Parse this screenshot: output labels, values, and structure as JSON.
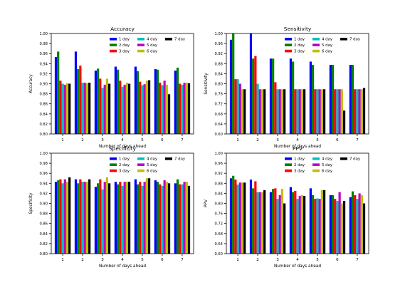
{
  "chart_data": [
    {
      "type": "bar",
      "title": "Accuracy",
      "xlabel": "Number of days ahead",
      "ylabel": "Accuracy",
      "ylim": [
        0.8,
        1.0
      ],
      "yticks": [
        0.8,
        0.82,
        0.84,
        0.86,
        0.88,
        0.9,
        0.92,
        0.94,
        0.96,
        0.98,
        1.0
      ],
      "categories": [
        "1",
        "2",
        "3",
        "4",
        "5",
        "6",
        "7"
      ],
      "legend_position": "top-right",
      "series": [
        {
          "name": "1 day",
          "color": "#0000ff",
          "values": [
            0.953,
            0.964,
            0.926,
            0.934,
            0.934,
            0.929,
            0.926
          ]
        },
        {
          "name": "2 day",
          "color": "#008000",
          "values": [
            0.964,
            0.929,
            0.93,
            0.928,
            0.925,
            0.928,
            0.932
          ]
        },
        {
          "name": "3 day",
          "color": "#ff0000",
          "values": [
            0.906,
            0.936,
            0.91,
            0.906,
            0.904,
            0.902,
            0.9
          ]
        },
        {
          "name": "4 day",
          "color": "#00bfbf",
          "values": [
            0.9,
            0.902,
            0.892,
            0.894,
            0.897,
            0.897,
            0.898
          ]
        },
        {
          "name": "5 day",
          "color": "#bf00bf",
          "values": [
            0.898,
            0.902,
            0.898,
            0.898,
            0.899,
            0.906,
            0.902
          ]
        },
        {
          "name": "6 day",
          "color": "#bfbf00",
          "values": [
            0.901,
            0.901,
            0.91,
            0.902,
            0.906,
            0.898,
            0.902
          ]
        },
        {
          "name": "7 day",
          "color": "#000000",
          "values": [
            0.9,
            0.902,
            0.9,
            0.9,
            0.907,
            0.879,
            0.901
          ]
        }
      ]
    },
    {
      "type": "bar",
      "title": "Sensitivity",
      "xlabel": "Number of days ahead",
      "ylabel": "Sensitivity",
      "ylim": [
        0.6,
        1.0
      ],
      "yticks": [
        0.6,
        0.64,
        0.68,
        0.72,
        0.76,
        0.8,
        0.84,
        0.88,
        0.92,
        0.96,
        1.0
      ],
      "categories": [
        "1",
        "2",
        "3",
        "4",
        "5",
        "6",
        "7"
      ],
      "legend_position": "top-right",
      "series": [
        {
          "name": "1 day",
          "color": "#0000ff",
          "values": [
            0.975,
            1.0,
            0.9,
            0.9,
            0.888,
            0.875,
            0.875
          ]
        },
        {
          "name": "2 day",
          "color": "#008000",
          "values": [
            1.0,
            0.9,
            0.9,
            0.888,
            0.875,
            0.875,
            0.875
          ]
        },
        {
          "name": "3 day",
          "color": "#ff0000",
          "values": [
            0.818,
            0.91,
            0.806,
            0.778,
            0.778,
            0.778,
            0.778
          ]
        },
        {
          "name": "4 day",
          "color": "#00bfbf",
          "values": [
            0.818,
            0.8,
            0.778,
            0.778,
            0.778,
            0.778,
            0.778
          ]
        },
        {
          "name": "5 day",
          "color": "#bf00bf",
          "values": [
            0.8,
            0.778,
            0.778,
            0.778,
            0.778,
            0.778,
            0.778
          ]
        },
        {
          "name": "6 day",
          "color": "#bfbf00",
          "values": [
            0.778,
            0.778,
            0.778,
            0.778,
            0.778,
            0.778,
            0.778
          ]
        },
        {
          "name": "7 day",
          "color": "#000000",
          "values": [
            0.778,
            0.778,
            0.778,
            0.778,
            0.778,
            0.693,
            0.783
          ]
        }
      ]
    },
    {
      "type": "bar",
      "title": "Specificity",
      "xlabel": "Number of days ahead",
      "ylabel": "Specificity",
      "ylim": [
        0.8,
        1.0
      ],
      "yticks": [
        0.8,
        0.82,
        0.84,
        0.86,
        0.88,
        0.9,
        0.92,
        0.94,
        0.96,
        0.98,
        1.0
      ],
      "categories": [
        "1",
        "2",
        "3",
        "4",
        "5",
        "6",
        "7"
      ],
      "legend_position": "top-right",
      "series": [
        {
          "name": "1 day",
          "color": "#0000ff",
          "values": [
            0.943,
            0.948,
            0.933,
            0.943,
            0.948,
            0.946,
            0.94
          ]
        },
        {
          "name": "2 day",
          "color": "#008000",
          "values": [
            0.946,
            0.94,
            0.94,
            0.938,
            0.938,
            0.943,
            0.948
          ]
        },
        {
          "name": "3 day",
          "color": "#ff0000",
          "values": [
            0.948,
            0.948,
            0.948,
            0.943,
            0.943,
            0.938,
            0.938
          ]
        },
        {
          "name": "4 day",
          "color": "#00bfbf",
          "values": [
            0.94,
            0.943,
            0.928,
            0.935,
            0.935,
            0.935,
            0.938
          ]
        },
        {
          "name": "5 day",
          "color": "#bf00bf",
          "values": [
            0.948,
            0.943,
            0.943,
            0.943,
            0.943,
            0.946,
            0.943
          ]
        },
        {
          "name": "6 day",
          "color": "#bfbf00",
          "values": [
            0.943,
            0.943,
            0.952,
            0.943,
            0.95,
            0.943,
            0.943
          ]
        },
        {
          "name": "7 day",
          "color": "#000000",
          "values": [
            0.952,
            0.948,
            0.94,
            0.943,
            0.95,
            0.94,
            0.935
          ]
        }
      ]
    },
    {
      "type": "bar",
      "title": "PPV",
      "xlabel": "Number of days ahead",
      "ylabel": "PPV",
      "ylim": [
        0.6,
        1.0
      ],
      "yticks": [
        0.6,
        0.64,
        0.68,
        0.72,
        0.76,
        0.8,
        0.84,
        0.88,
        0.92,
        0.96,
        1.0
      ],
      "categories": [
        "1",
        "2",
        "3",
        "4",
        "5",
        "6",
        "7"
      ],
      "legend_position": "top-right",
      "series": [
        {
          "name": "1 day",
          "color": "#0000ff",
          "values": [
            0.9,
            0.895,
            0.845,
            0.865,
            0.86,
            0.833,
            0.825
          ]
        },
        {
          "name": "2 day",
          "color": "#008000",
          "values": [
            0.91,
            0.86,
            0.858,
            0.845,
            0.833,
            0.833,
            0.848
          ]
        },
        {
          "name": "3 day",
          "color": "#ff0000",
          "values": [
            0.895,
            0.888,
            0.86,
            0.85,
            0.818,
            0.818,
            0.833
          ]
        },
        {
          "name": "4 day",
          "color": "#00bfbf",
          "values": [
            0.875,
            0.845,
            0.818,
            0.818,
            0.82,
            0.81,
            0.818
          ]
        },
        {
          "name": "5 day",
          "color": "#bf00bf",
          "values": [
            0.883,
            0.845,
            0.833,
            0.83,
            0.818,
            0.845,
            0.84
          ]
        },
        {
          "name": "6 day",
          "color": "#bfbf00",
          "values": [
            0.883,
            0.845,
            0.858,
            0.833,
            0.853,
            0.8,
            0.833
          ]
        },
        {
          "name": "7 day",
          "color": "#000000",
          "values": [
            0.883,
            0.853,
            0.8,
            0.83,
            0.853,
            0.81,
            0.8
          ]
        }
      ]
    }
  ]
}
